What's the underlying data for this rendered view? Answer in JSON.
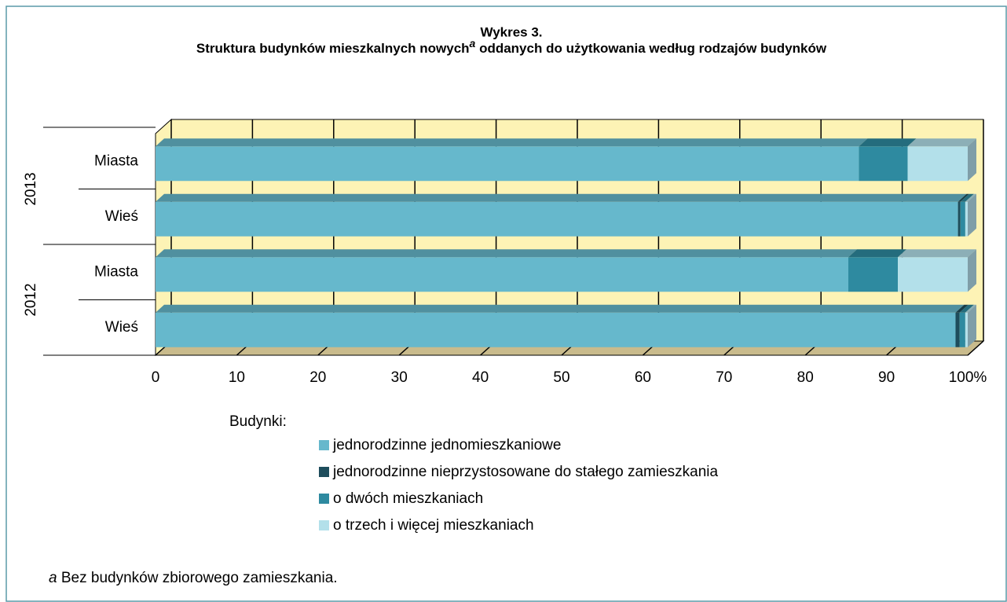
{
  "chart_data": {
    "type": "stacked-bar-horizontal-3d",
    "title": "Wykres 3.",
    "subtitle_parts": [
      "Struktura budynków mieszkalnych nowych",
      "a",
      " oddanych do użytkowania według rodzajów budynków"
    ],
    "groups": [
      "2013",
      "2012"
    ],
    "categories": [
      "Miasta",
      "Wieś",
      "Miasta",
      "Wieś"
    ],
    "series": [
      {
        "name": "jednorodzinne jednomieszkaniowe",
        "color": "#66b8cc",
        "values": [
          86.6,
          98.8,
          85.3,
          98.5
        ]
      },
      {
        "name": "jednorodzinne nieprzystosowane do stałego zamieszkania",
        "color": "#1e4d5c",
        "values": [
          0,
          0.3,
          0,
          0.5
        ]
      },
      {
        "name": "o dwóch mieszkaniach",
        "color": "#2e8aa0",
        "values": [
          6.0,
          0.6,
          6.1,
          0.7
        ]
      },
      {
        "name": "o trzech i więcej mieszkaniach",
        "color": "#b3e0ea",
        "values": [
          7.4,
          0.3,
          8.6,
          0.3
        ]
      }
    ],
    "xlim": [
      0,
      100
    ],
    "xticks": [
      0,
      10,
      20,
      30,
      40,
      50,
      60,
      70,
      80,
      90,
      {
        "value": 100,
        "label": "100%"
      }
    ],
    "grid": true,
    "legend_title": "Budynki:",
    "footnote_marker": "a",
    "footnote": " Bez budynków zbiorowego zamieszkania."
  }
}
